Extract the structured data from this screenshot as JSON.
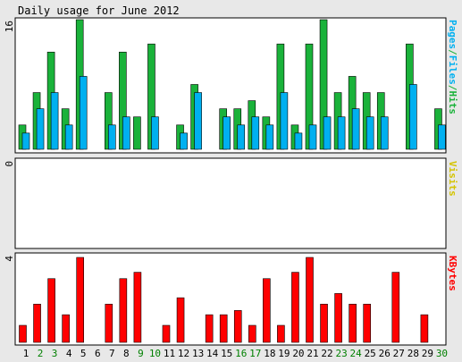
{
  "title": "Daily usage for June 2012",
  "colors": {
    "background": "#e8e8e8",
    "panel": "#ffffff",
    "hits": "#1ab23a",
    "files": "#00b0f0",
    "kbytes": "#ff0000",
    "visits": "#d4c400",
    "weekend_label": "#008000",
    "weekday_label": "#000000",
    "outline": "#000000"
  },
  "chart_data": [
    {
      "type": "bar",
      "panel": "pages-files-hits",
      "axis_label": "Pages/Files/Hits",
      "axis_label_parts": [
        "Pages",
        "/",
        "Files",
        "/",
        "Hits"
      ],
      "ymax_label": "16",
      "ylim": [
        0,
        16
      ],
      "categories": [
        "1",
        "2",
        "3",
        "4",
        "5",
        "6",
        "7",
        "8",
        "9",
        "10",
        "11",
        "12",
        "13",
        "14",
        "15",
        "16",
        "17",
        "18",
        "19",
        "20",
        "21",
        "22",
        "23",
        "24",
        "25",
        "26",
        "27",
        "28",
        "29",
        "30"
      ],
      "series": [
        {
          "name": "Hits",
          "values": [
            3,
            7,
            12,
            5,
            16,
            0,
            7,
            12,
            4,
            13,
            0,
            3,
            8,
            0,
            5,
            5,
            6,
            4,
            13,
            3,
            13,
            16,
            7,
            9,
            7,
            7,
            0,
            13,
            0,
            5
          ]
        },
        {
          "name": "Files",
          "values": [
            2,
            5,
            7,
            3,
            9,
            0,
            3,
            4,
            0,
            4,
            0,
            2,
            7,
            0,
            4,
            3,
            4,
            3,
            7,
            2,
            3,
            4,
            4,
            5,
            4,
            4,
            0,
            8,
            0,
            3
          ]
        },
        {
          "name": "Pages",
          "values": [
            0,
            0,
            0,
            0,
            0,
            0,
            0,
            0,
            0,
            0,
            0,
            0,
            0,
            0,
            0,
            0,
            0,
            0,
            0,
            0,
            0,
            0,
            0,
            0,
            0,
            0,
            0,
            0,
            0,
            0
          ]
        }
      ]
    },
    {
      "type": "bar",
      "panel": "visits",
      "axis_label": "Visits",
      "ymax_label": "0",
      "ylim": [
        0,
        1
      ],
      "categories": [
        "1",
        "2",
        "3",
        "4",
        "5",
        "6",
        "7",
        "8",
        "9",
        "10",
        "11",
        "12",
        "13",
        "14",
        "15",
        "16",
        "17",
        "18",
        "19",
        "20",
        "21",
        "22",
        "23",
        "24",
        "25",
        "26",
        "27",
        "28",
        "29",
        "30"
      ],
      "series": [
        {
          "name": "Visits",
          "values": [
            0,
            0,
            0,
            0,
            0,
            0,
            0,
            0,
            0,
            0,
            0,
            0,
            0,
            0,
            0,
            0,
            0,
            0,
            0,
            0,
            0,
            0,
            0,
            0,
            0,
            0,
            0,
            0,
            0,
            0
          ]
        }
      ]
    },
    {
      "type": "bar",
      "panel": "kbytes",
      "axis_label": "KBytes",
      "ymax_label": "4",
      "ylim": [
        0,
        4
      ],
      "categories": [
        "1",
        "2",
        "3",
        "4",
        "5",
        "6",
        "7",
        "8",
        "9",
        "10",
        "11",
        "12",
        "13",
        "14",
        "15",
        "16",
        "17",
        "18",
        "19",
        "20",
        "21",
        "22",
        "23",
        "24",
        "25",
        "26",
        "27",
        "28",
        "29",
        "30"
      ],
      "weekend_days": [
        "2",
        "3",
        "9",
        "10",
        "16",
        "17",
        "23",
        "24",
        "30"
      ],
      "series": [
        {
          "name": "KBytes",
          "values": [
            0.8,
            1.8,
            3.0,
            1.3,
            4.0,
            0,
            1.8,
            3.0,
            3.3,
            0,
            0.8,
            2.1,
            0,
            1.3,
            1.3,
            1.5,
            0.8,
            3.0,
            0.8,
            3.3,
            4.0,
            1.8,
            2.3,
            1.8,
            1.8,
            0,
            3.3,
            0,
            1.3,
            0
          ]
        }
      ]
    }
  ]
}
